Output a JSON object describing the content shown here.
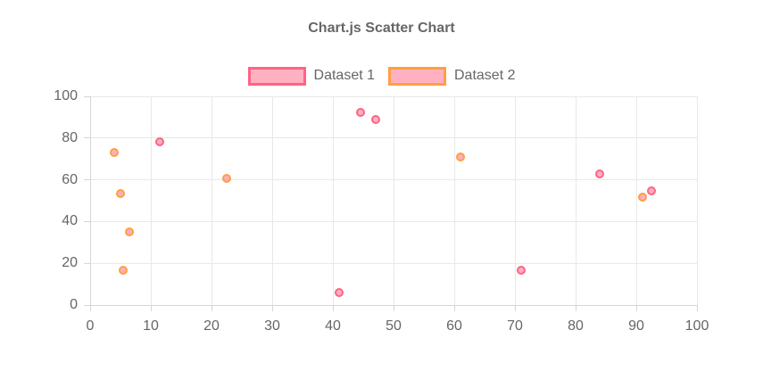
{
  "chart_data": {
    "type": "scatter",
    "title": "Chart.js Scatter Chart",
    "xlabel": "",
    "ylabel": "",
    "xlim": [
      0,
      100
    ],
    "ylim": [
      0,
      100
    ],
    "x_ticks": [
      0,
      10,
      20,
      30,
      40,
      50,
      60,
      70,
      80,
      90,
      100
    ],
    "y_ticks": [
      0,
      20,
      40,
      60,
      80,
      100
    ],
    "grid": true,
    "legend_position": "top",
    "series": [
      {
        "name": "Dataset 1",
        "border_color": "#ff6384",
        "fill_color": "rgba(255, 99, 132, 0.5)",
        "points": [
          {
            "x": 11.5,
            "y": 78
          },
          {
            "x": 41,
            "y": 6
          },
          {
            "x": 44.5,
            "y": 92.5
          },
          {
            "x": 47,
            "y": 89
          },
          {
            "x": 71,
            "y": 16.5
          },
          {
            "x": 84,
            "y": 63
          },
          {
            "x": 92.5,
            "y": 54.5
          }
        ]
      },
      {
        "name": "Dataset 2",
        "border_color": "#ff9f40",
        "fill_color": "rgba(255, 99, 132, 0.5)",
        "points": [
          {
            "x": 4,
            "y": 73
          },
          {
            "x": 5,
            "y": 53.5
          },
          {
            "x": 6.5,
            "y": 35
          },
          {
            "x": 5.5,
            "y": 16.5
          },
          {
            "x": 22.5,
            "y": 60.5
          },
          {
            "x": 61,
            "y": 71
          },
          {
            "x": 91,
            "y": 51.5
          }
        ]
      }
    ],
    "colors": {
      "title_text": "#666666",
      "label_text": "#666666",
      "grid": "#e8e8e8",
      "axis_border": "#d6d6d6",
      "tick": "#d6d6d6"
    }
  }
}
